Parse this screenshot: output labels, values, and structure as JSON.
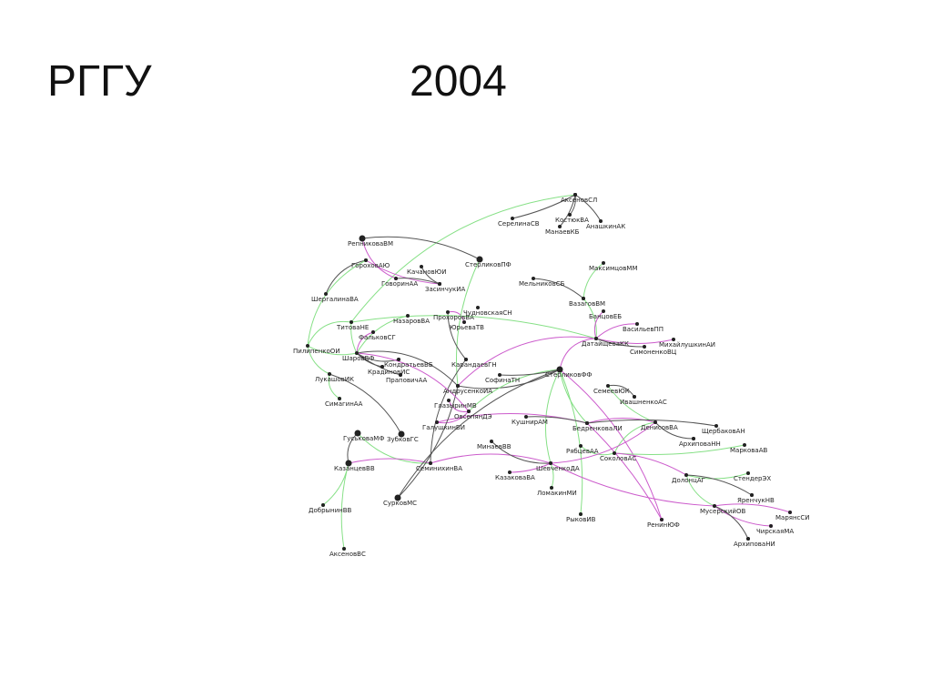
{
  "title": "РГГУ",
  "year": "2004",
  "nodes": [
    "АксеновСЛ",
    "СерелинаСВ",
    "КостюкВА",
    "АнашкинАК",
    "МанаевКБ",
    "РепниковаВМ",
    "ГороховАЮ",
    "КачановЮИ",
    "СтерликовПФ",
    "МаксимцовММ",
    "МельниковСБ",
    "ГоворинАА",
    "ЗасинчукИА",
    "ШергалинаВА",
    "ВазаговВМ",
    "ЧудновскаяСН",
    "ПрохоровВА",
    "НазаровВА",
    "БанцовЕБ",
    "ТитоваНЕ",
    "ЮрьеваТВ",
    "ВасильевПП",
    "ФальковСГ",
    "ДатайщеваКК",
    "МихайлушкинАИ",
    "ПилипенкоОИ",
    "ШаровВФ",
    "СимоненкоВЦ",
    "КондратьевВБ",
    "КрадиновИС",
    "КарандаевГН",
    "ПраповичАА",
    "ЛукашовИК",
    "СофинаТН",
    "СтерликовФФ",
    "АндрусенкоИА",
    "СемеевЮК",
    "ИвашненкоАС",
    "СимагинАА",
    "ГлазыринМВ",
    "ОвсепянДЭ",
    "КушнирАМ",
    "ГалушкинВИ",
    "БедренковаЛИ",
    "ДенисовВА",
    "ЩербаковАН",
    "ГуськоваМФ",
    "ЗубковГС",
    "МинаевВВ",
    "АрхиповаНН",
    "РябцевАА",
    "МарковаАВ",
    "СоколовАС",
    "КазанцевВВ",
    "СеминихинВА",
    "ШевченкоДА",
    "КазаковаВА",
    "ДолонцАГ",
    "СтендерЭХ",
    "ЛомакинМИ",
    "ЯренчукНВ",
    "СурковМС",
    "ДобрынинВВ",
    "МусерскийОВ",
    "МарянсСИ",
    "РыковИВ",
    "РенинЮФ",
    "ЧирскаяМА",
    "АрхиповаНИ",
    "АксеновВС"
  ]
}
